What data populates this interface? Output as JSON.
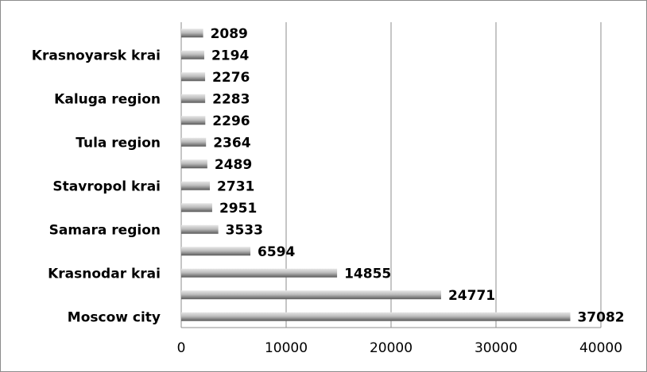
{
  "chart_data": {
    "type": "bar",
    "orientation": "horizontal",
    "categories": [
      "Moscow city",
      "",
      "Krasnodar krai",
      "",
      "Samara region",
      "",
      "Stavropol krai",
      "",
      "Tula region",
      "",
      "Kaluga region",
      "",
      "Krasnoyarsk krai",
      ""
    ],
    "values": [
      37082,
      24771,
      14855,
      6594,
      3533,
      2951,
      2731,
      2489,
      2364,
      2296,
      2283,
      2276,
      2194,
      2089
    ],
    "value_labels": [
      "37082",
      "24771",
      "14855",
      "6594",
      "3533",
      "2951",
      "2731",
      "2489",
      "2364",
      "2296",
      "2283",
      "2276",
      "2194",
      "2089"
    ],
    "xticks": [
      "0",
      "10000",
      "20000",
      "30000",
      "40000"
    ],
    "xlim": [
      0,
      40000
    ],
    "grid": "vertical",
    "legend": "none",
    "colors": {
      "bar_light": "#d9d9d9",
      "bar_dark": "#6e6e6e",
      "gridline": "#8c8c8c",
      "axis": "#8c8c8c"
    }
  }
}
